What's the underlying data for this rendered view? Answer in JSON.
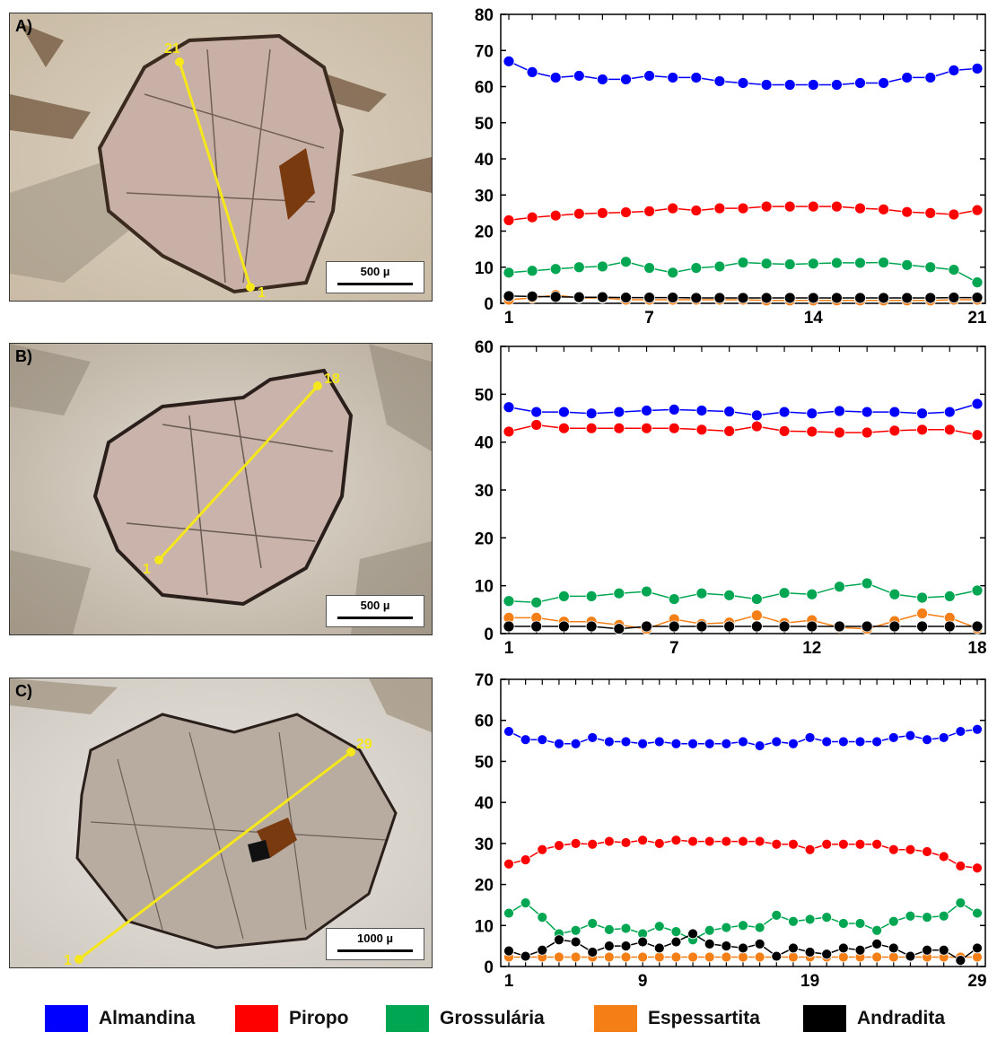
{
  "panels": [
    {
      "letter": "A)",
      "scale_label": "500 µ",
      "start_label": "1",
      "end_label": "21"
    },
    {
      "letter": "B)",
      "scale_label": "500 µ",
      "start_label": "1",
      "end_label": "18"
    },
    {
      "letter": "C)",
      "scale_label": "1000 µ",
      "start_label": "1",
      "end_label": "29"
    }
  ],
  "legend": [
    {
      "label": "Almandina",
      "color": "#0000ff"
    },
    {
      "label": "Piropo",
      "color": "#ff0000"
    },
    {
      "label": "Grossulária",
      "color": "#00a651"
    },
    {
      "label": "Espessartita",
      "color": "#f57f17"
    },
    {
      "label": "Andradita",
      "color": "#000000"
    }
  ],
  "chart_data": [
    {
      "type": "line",
      "x": [
        1,
        2,
        3,
        4,
        5,
        6,
        7,
        8,
        9,
        10,
        11,
        12,
        13,
        14,
        15,
        16,
        17,
        18,
        19,
        20,
        21
      ],
      "xticks": [
        1,
        7,
        14,
        21
      ],
      "ylim": [
        0,
        80
      ],
      "yticks": [
        0,
        10,
        20,
        30,
        40,
        50,
        60,
        70,
        80
      ],
      "series": [
        {
          "name": "Almandina",
          "color": "#0000ff",
          "values": [
            67,
            64,
            62.5,
            63,
            62,
            62,
            63,
            62.5,
            62.5,
            61.5,
            61,
            60.5,
            60.5,
            60.5,
            60.5,
            61,
            61,
            62.5,
            62.5,
            64.5,
            65
          ]
        },
        {
          "name": "Piropo",
          "color": "#ff0000",
          "values": [
            23,
            23.8,
            24.3,
            24.8,
            25,
            25.2,
            25.5,
            26.3,
            25.7,
            26.3,
            26.3,
            26.8,
            26.8,
            26.8,
            26.8,
            26.3,
            26,
            25.3,
            25,
            24.6,
            25.8
          ]
        },
        {
          "name": "Grossulária",
          "color": "#00a651",
          "values": [
            8.5,
            9,
            9.5,
            10,
            10.2,
            11.5,
            9.8,
            8.5,
            9.8,
            10.2,
            11.3,
            11,
            10.8,
            11,
            11.2,
            11.2,
            11.3,
            10.6,
            10,
            9.3,
            5.8
          ]
        },
        {
          "name": "Espessartita",
          "color": "#f57f17",
          "values": [
            1,
            1.5,
            2.3,
            1.5,
            1.5,
            1,
            1,
            1,
            1,
            1,
            1,
            0.8,
            0.8,
            0.8,
            0.8,
            0.8,
            0.8,
            0.8,
            0.8,
            1,
            1
          ]
        },
        {
          "name": "Andradita",
          "color": "#000000",
          "values": [
            2,
            1.9,
            1.8,
            1.7,
            1.7,
            1.6,
            1.6,
            1.6,
            1.5,
            1.5,
            1.5,
            1.5,
            1.5,
            1.5,
            1.5,
            1.5,
            1.5,
            1.5,
            1.5,
            1.6,
            1.6
          ]
        }
      ]
    },
    {
      "type": "line",
      "x": [
        1,
        2,
        3,
        4,
        5,
        6,
        7,
        8,
        9,
        10,
        11,
        12,
        13,
        14,
        15,
        16,
        17,
        18
      ],
      "xticks": [
        1,
        7,
        12,
        18
      ],
      "ylim": [
        0,
        60
      ],
      "yticks": [
        0,
        10,
        20,
        30,
        40,
        50,
        60
      ],
      "series": [
        {
          "name": "Almandina",
          "color": "#0000ff",
          "values": [
            47.3,
            46.3,
            46.3,
            46,
            46.3,
            46.6,
            46.8,
            46.6,
            46.4,
            45.6,
            46.3,
            46,
            46.5,
            46.3,
            46.3,
            46,
            46.3,
            48
          ]
        },
        {
          "name": "Piropo",
          "color": "#ff0000",
          "values": [
            42.2,
            43.6,
            42.9,
            42.9,
            42.9,
            42.9,
            42.9,
            42.6,
            42.3,
            43.3,
            42.3,
            42.2,
            42,
            42,
            42.4,
            42.6,
            42.6,
            41.5
          ]
        },
        {
          "name": "Grossulária",
          "color": "#00a651",
          "values": [
            6.8,
            6.5,
            7.8,
            7.8,
            8.4,
            8.8,
            7.2,
            8.4,
            8,
            7.2,
            8.5,
            8.2,
            9.8,
            10.5,
            8.2,
            7.5,
            7.8,
            9
          ]
        },
        {
          "name": "Espessartita",
          "color": "#f57f17",
          "values": [
            3.3,
            3.3,
            2.5,
            2.5,
            1.8,
            1,
            3,
            2,
            2.3,
            3.8,
            2.2,
            2.8,
            1.3,
            1,
            2.6,
            4.2,
            3.3,
            1.1
          ]
        },
        {
          "name": "Andradita",
          "color": "#000000",
          "values": [
            1.5,
            1.5,
            1.5,
            1.5,
            1,
            1.5,
            1.5,
            1.5,
            1.5,
            1.5,
            1.5,
            1.5,
            1.5,
            1.5,
            1.5,
            1.5,
            1.5,
            1.5
          ]
        }
      ]
    },
    {
      "type": "line",
      "x": [
        1,
        2,
        3,
        4,
        5,
        6,
        7,
        8,
        9,
        10,
        11,
        12,
        13,
        14,
        15,
        16,
        17,
        18,
        19,
        20,
        21,
        22,
        23,
        24,
        25,
        26,
        27,
        28,
        29
      ],
      "xticks": [
        1,
        9,
        19,
        29
      ],
      "ylim": [
        0,
        70
      ],
      "yticks": [
        0,
        10,
        20,
        30,
        40,
        50,
        60,
        70
      ],
      "series": [
        {
          "name": "Almandina",
          "color": "#0000ff",
          "values": [
            57.3,
            55.3,
            55.3,
            54.3,
            54.3,
            55.8,
            54.8,
            54.8,
            54.3,
            54.8,
            54.3,
            54.3,
            54.3,
            54.3,
            54.8,
            53.8,
            54.8,
            54.3,
            55.8,
            54.8,
            54.8,
            54.8,
            54.8,
            55.8,
            56.3,
            55.3,
            55.8,
            57.3,
            57.8
          ]
        },
        {
          "name": "Piropo",
          "color": "#ff0000",
          "values": [
            25,
            26,
            28.5,
            29.5,
            30,
            29.8,
            30.5,
            30.2,
            30.8,
            30,
            30.8,
            30.5,
            30.5,
            30.5,
            30.5,
            30.5,
            29.8,
            29.8,
            28.5,
            29.8,
            29.8,
            29.8,
            29.8,
            28.5,
            28.5,
            28,
            26.8,
            24.5,
            24
          ]
        },
        {
          "name": "Grossulária",
          "color": "#00a651",
          "values": [
            13,
            15.5,
            12,
            8,
            8.8,
            10.5,
            9,
            9.3,
            8,
            9.8,
            8.5,
            6.5,
            8.8,
            9.5,
            10,
            9.5,
            12.5,
            11,
            11.5,
            12,
            10.5,
            10.5,
            8.8,
            11,
            12.3,
            12,
            12.3,
            15.5,
            13
          ]
        },
        {
          "name": "Espessartita",
          "color": "#f57f17",
          "values": [
            2.3,
            2.3,
            2.3,
            2.3,
            2.3,
            2.3,
            2.3,
            2.3,
            2.3,
            2.3,
            2.3,
            2.3,
            2.3,
            2.3,
            2.3,
            2.3,
            2.3,
            2.3,
            2.3,
            2.3,
            2.3,
            2.3,
            2.3,
            2.3,
            2.3,
            2.3,
            2.3,
            2.3,
            2.3
          ]
        },
        {
          "name": "Andradita",
          "color": "#000000",
          "values": [
            3.8,
            2.5,
            4,
            6.5,
            6,
            3.5,
            5,
            5,
            6,
            4.5,
            6,
            8,
            5.5,
            5,
            4.5,
            5.5,
            2.5,
            4.5,
            3.5,
            3,
            4.5,
            4,
            5.5,
            4.5,
            2.5,
            4,
            4,
            1.5,
            4.5
          ]
        }
      ]
    }
  ]
}
